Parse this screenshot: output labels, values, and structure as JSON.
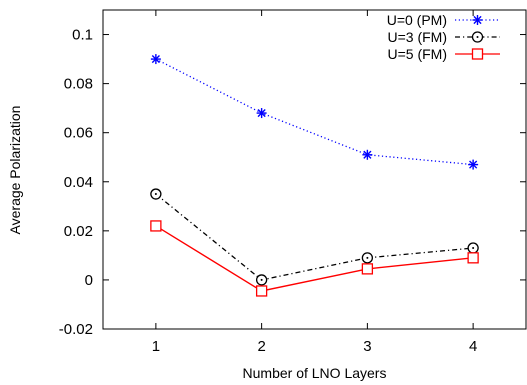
{
  "chart_data": {
    "type": "line",
    "title": "",
    "xlabel": "Number of LNO Layers",
    "ylabel": "Average Polarization",
    "xlim": [
      0.5,
      4.5
    ],
    "ylim": [
      -0.02,
      0.11
    ],
    "xticks": [
      1,
      2,
      3,
      4
    ],
    "xtick_labels": [
      "1",
      "2",
      "3",
      "4"
    ],
    "yticks": [
      -0.02,
      0,
      0.02,
      0.04,
      0.06,
      0.08,
      0.1
    ],
    "ytick_labels": [
      "-0.02",
      "0",
      "0.02",
      "0.04",
      "0.06",
      "0.08",
      "0.1"
    ],
    "grid": false,
    "legend_position": "top-right",
    "x": [
      1,
      2,
      3,
      4
    ],
    "series": [
      {
        "name": "U=0 (PM)",
        "values": [
          0.09,
          0.068,
          0.051,
          0.047
        ],
        "color": "#0000ff",
        "line_style": "dotted",
        "marker": "star"
      },
      {
        "name": "U=3 (FM)",
        "values": [
          0.035,
          0.0,
          0.009,
          0.013
        ],
        "color": "#000000",
        "line_style": "dash-dot",
        "marker": "circle-dot"
      },
      {
        "name": "U=5 (FM)",
        "values": [
          0.022,
          -0.0045,
          0.0045,
          0.009
        ],
        "color": "#ff0000",
        "line_style": "solid",
        "marker": "square"
      }
    ]
  }
}
